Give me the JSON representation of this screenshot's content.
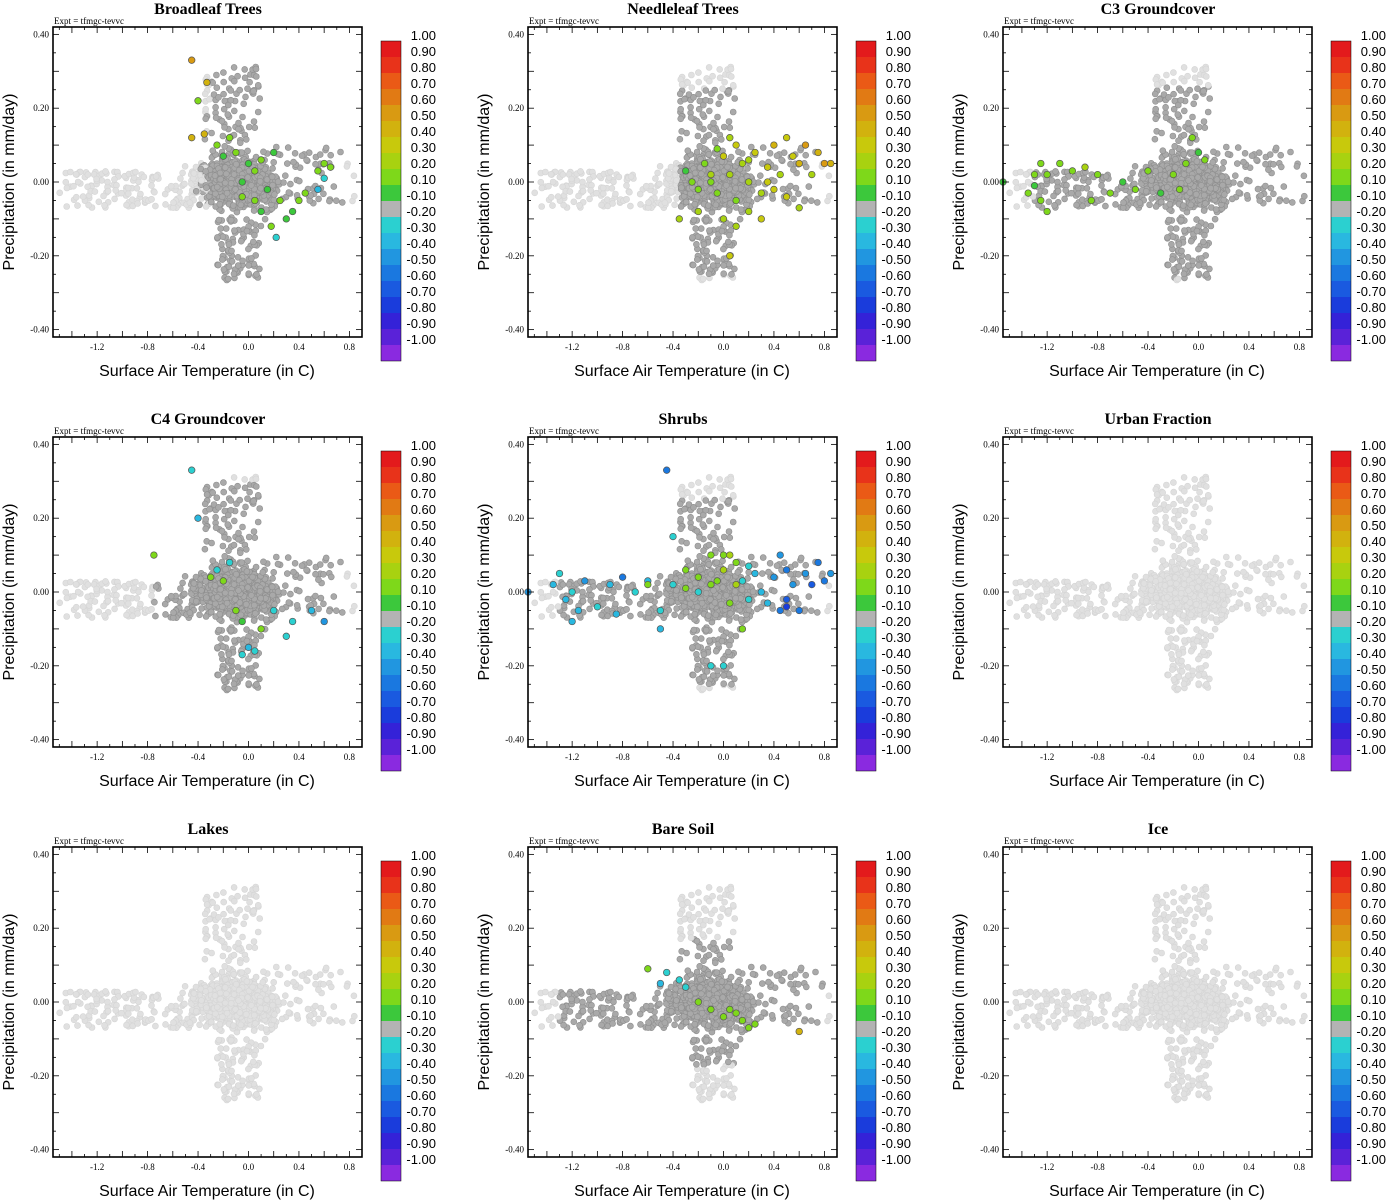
{
  "expt_label": "Expt = tfmgc-tevvc",
  "colorbar": {
    "levels": [
      "1.00",
      "0.90",
      "0.80",
      "0.70",
      "0.60",
      "0.50",
      "0.40",
      "0.30",
      "0.20",
      "0.10",
      "-0.10",
      "-0.20",
      "-0.30",
      "-0.40",
      "-0.50",
      "-0.60",
      "-0.70",
      "-0.80",
      "-0.90",
      "-1.00"
    ],
    "colors": [
      "#e31a1c",
      "#e8331a",
      "#ea5a16",
      "#e17a14",
      "#d99a12",
      "#d2b20e",
      "#c8c90c",
      "#a8d210",
      "#7ed81a",
      "#3cc83c",
      "#b3b3b3",
      "#2bd0d0",
      "#29b8e0",
      "#2196e0",
      "#1a78e0",
      "#1a5ae0",
      "#1a3cdc",
      "#3422d8",
      "#5a22d8",
      "#8a2ae0"
    ]
  },
  "colors": {
    "background_points": "#e0e0e0",
    "neutral_points": "#a9a9a9"
  },
  "chart_data": [
    {
      "type": "scatter",
      "title": "Broadleaf Trees",
      "xlabel": "Surface Air Temperature (in C)",
      "ylabel": "Precipitation (in mm/day)",
      "xlim": [
        -1.55,
        0.9
      ],
      "ylim": [
        -0.42,
        0.42
      ],
      "xticks": [
        "-1.2",
        "-0.8",
        "-0.4",
        "0.0",
        "0.4",
        "0.8"
      ],
      "yticks": [
        "-0.40",
        "-0.20",
        "0.00",
        "0.20",
        "0.40"
      ],
      "highlight": [
        [
          -0.45,
          0.33
        ],
        [
          -0.33,
          0.27
        ],
        [
          -0.4,
          0.22
        ],
        [
          -0.35,
          0.13
        ],
        [
          -0.45,
          0.12
        ],
        [
          -0.25,
          0.1
        ],
        [
          -0.15,
          0.12
        ],
        [
          -0.2,
          0.07
        ],
        [
          -0.1,
          0.08
        ],
        [
          0.0,
          0.05
        ],
        [
          0.1,
          0.06
        ],
        [
          0.2,
          0.08
        ],
        [
          0.05,
          0.03
        ],
        [
          -0.05,
          0.0
        ],
        [
          0.15,
          -0.02
        ],
        [
          0.25,
          -0.05
        ],
        [
          0.3,
          -0.1
        ],
        [
          0.35,
          -0.08
        ],
        [
          0.4,
          -0.05
        ],
        [
          0.45,
          -0.03
        ],
        [
          0.55,
          0.03
        ],
        [
          0.6,
          0.05
        ],
        [
          0.65,
          0.04
        ],
        [
          0.05,
          -0.05
        ],
        [
          0.1,
          -0.08
        ],
        [
          0.18,
          -0.12
        ],
        [
          0.22,
          -0.15
        ],
        [
          -0.05,
          -0.04
        ],
        [
          0.55,
          -0.02
        ],
        [
          0.6,
          0.01
        ]
      ],
      "highlight_values": [
        0.55,
        0.45,
        0.15,
        0.45,
        0.5,
        0.15,
        0.15,
        0.1,
        0.2,
        0.1,
        0.15,
        0.1,
        0.15,
        0.1,
        0.1,
        0.15,
        0.1,
        0.1,
        0.2,
        0.15,
        0.15,
        0.2,
        0.15,
        0.15,
        0.1,
        0.15,
        -0.25,
        0.15,
        -0.3,
        -0.2
      ]
    },
    {
      "type": "scatter",
      "title": "Needleleaf Trees",
      "xlabel": "Surface Air Temperature (in C)",
      "ylabel": "Precipitation (in mm/day)",
      "xlim": [
        -1.55,
        0.9
      ],
      "ylim": [
        -0.42,
        0.42
      ],
      "xticks": [
        "-1.2",
        "-0.8",
        "-0.4",
        "0.0",
        "0.4",
        "0.8"
      ],
      "yticks": [
        "-0.40",
        "-0.20",
        "0.00",
        "0.20",
        "0.40"
      ],
      "highlight": [
        [
          -0.3,
          0.03
        ],
        [
          -0.25,
          0.0
        ],
        [
          -0.2,
          -0.02
        ],
        [
          -0.15,
          0.05
        ],
        [
          -0.1,
          0.02
        ],
        [
          -0.05,
          -0.03
        ],
        [
          0.0,
          0.07
        ],
        [
          0.05,
          0.02
        ],
        [
          0.1,
          -0.05
        ],
        [
          0.15,
          0.05
        ],
        [
          0.2,
          0.0
        ],
        [
          0.25,
          0.08
        ],
        [
          0.3,
          -0.03
        ],
        [
          0.35,
          0.04
        ],
        [
          0.4,
          0.1
        ],
        [
          0.45,
          0.02
        ],
        [
          0.5,
          -0.04
        ],
        [
          0.55,
          0.07
        ],
        [
          0.6,
          0.05
        ],
        [
          0.65,
          0.1
        ],
        [
          0.7,
          0.02
        ],
        [
          0.75,
          0.08
        ],
        [
          0.8,
          0.05
        ],
        [
          0.85,
          0.05
        ],
        [
          0.05,
          0.12
        ],
        [
          0.1,
          0.1
        ],
        [
          -0.05,
          0.09
        ],
        [
          0.0,
          -0.1
        ],
        [
          0.1,
          -0.12
        ],
        [
          0.2,
          -0.08
        ],
        [
          0.3,
          -0.1
        ],
        [
          -0.2,
          -0.08
        ],
        [
          -0.35,
          -0.1
        ],
        [
          0.4,
          -0.02
        ],
        [
          0.5,
          0.12
        ],
        [
          0.6,
          -0.07
        ],
        [
          0.05,
          -0.2
        ],
        [
          -0.1,
          0.0
        ],
        [
          0.2,
          0.06
        ],
        [
          0.35,
          0.0
        ]
      ],
      "highlight_values": [
        0.1,
        0.2,
        0.15,
        0.2,
        0.3,
        0.2,
        0.35,
        0.25,
        0.2,
        0.3,
        0.25,
        0.4,
        0.3,
        0.35,
        0.45,
        0.3,
        0.4,
        0.4,
        0.5,
        0.55,
        0.3,
        0.45,
        0.55,
        0.5,
        0.3,
        0.35,
        0.2,
        0.25,
        0.3,
        0.3,
        0.35,
        0.25,
        0.3,
        0.4,
        0.4,
        0.3,
        0.35,
        0.2,
        0.3,
        0.35
      ]
    },
    {
      "type": "scatter",
      "title": "C3 Groundcover",
      "xlabel": "Surface Air Temperature (in C)",
      "ylabel": "Precipitation (in mm/day)",
      "xlim": [
        -1.55,
        0.9
      ],
      "ylim": [
        -0.42,
        0.42
      ],
      "xticks": [
        "-1.2",
        "-0.8",
        "-0.4",
        "0.0",
        "0.4",
        "0.8"
      ],
      "yticks": [
        "-0.40",
        "-0.20",
        "0.00",
        "0.20",
        "0.40"
      ],
      "highlight": [
        [
          -1.55,
          0.0
        ],
        [
          -1.3,
          0.02
        ],
        [
          -1.25,
          0.05
        ],
        [
          -1.2,
          0.02
        ],
        [
          -1.3,
          -0.01
        ],
        [
          -1.25,
          -0.05
        ],
        [
          -1.2,
          -0.08
        ],
        [
          -1.1,
          0.05
        ],
        [
          -1.0,
          0.03
        ],
        [
          -0.9,
          0.04
        ],
        [
          -0.8,
          0.02
        ],
        [
          -0.85,
          -0.05
        ],
        [
          -0.7,
          -0.03
        ],
        [
          -0.6,
          0.0
        ],
        [
          -0.5,
          -0.02
        ],
        [
          -0.4,
          0.03
        ],
        [
          -0.3,
          -0.03
        ],
        [
          -0.2,
          0.02
        ],
        [
          -0.1,
          0.05
        ],
        [
          0.0,
          0.08
        ],
        [
          -0.05,
          0.12
        ],
        [
          0.05,
          0.06
        ],
        [
          -0.15,
          -0.02
        ],
        [
          -1.35,
          -0.03
        ]
      ],
      "highlight_values": [
        0.1,
        0.15,
        0.2,
        0.15,
        0.1,
        0.15,
        0.15,
        0.2,
        0.15,
        0.3,
        0.15,
        0.15,
        0.2,
        0.1,
        0.15,
        0.15,
        0.1,
        0.15,
        0.2,
        0.1,
        0.15,
        0.2,
        0.15,
        0.15
      ]
    },
    {
      "type": "scatter",
      "title": "C4 Groundcover",
      "xlabel": "Surface Air Temperature (in C)",
      "ylabel": "Precipitation (in mm/day)",
      "xlim": [
        -1.55,
        0.9
      ],
      "ylim": [
        -0.42,
        0.42
      ],
      "xticks": [
        "-1.2",
        "-0.8",
        "-0.4",
        "0.0",
        "0.4",
        "0.8"
      ],
      "yticks": [
        "-0.40",
        "-0.20",
        "0.00",
        "0.20",
        "0.40"
      ],
      "highlight": [
        [
          -0.45,
          0.33
        ],
        [
          -0.4,
          0.2
        ],
        [
          -0.75,
          0.1
        ],
        [
          -0.3,
          0.04
        ],
        [
          -0.2,
          0.03
        ],
        [
          -0.1,
          -0.05
        ],
        [
          -0.05,
          -0.08
        ],
        [
          0.2,
          -0.05
        ],
        [
          0.3,
          -0.12
        ],
        [
          0.1,
          -0.1
        ],
        [
          0.0,
          -0.15
        ],
        [
          -0.05,
          -0.17
        ],
        [
          0.05,
          -0.16
        ],
        [
          0.35,
          -0.08
        ],
        [
          0.5,
          -0.05
        ],
        [
          0.6,
          -0.08
        ],
        [
          -0.15,
          0.08
        ],
        [
          -0.25,
          0.06
        ]
      ],
      "highlight_values": [
        -0.25,
        -0.3,
        0.2,
        0.15,
        0.15,
        0.15,
        0.1,
        -0.2,
        -0.25,
        0.15,
        -0.3,
        -0.2,
        -0.25,
        -0.2,
        -0.3,
        -0.4,
        -0.2,
        -0.2
      ]
    },
    {
      "type": "scatter",
      "title": "Shrubs",
      "xlabel": "Surface Air Temperature (in C)",
      "ylabel": "Precipitation (in mm/day)",
      "xlim": [
        -1.55,
        0.9
      ],
      "ylim": [
        -0.42,
        0.42
      ],
      "xticks": [
        "-1.2",
        "-0.8",
        "-0.4",
        "0.0",
        "0.4",
        "0.8"
      ],
      "yticks": [
        "-0.40",
        "-0.20",
        "0.00",
        "0.20",
        "0.40"
      ],
      "highlight": [
        [
          -0.45,
          0.33
        ],
        [
          -1.55,
          0.0
        ],
        [
          -1.35,
          0.02
        ],
        [
          -1.3,
          0.05
        ],
        [
          -1.25,
          -0.02
        ],
        [
          -1.2,
          0.0
        ],
        [
          -1.15,
          -0.05
        ],
        [
          -1.1,
          0.03
        ],
        [
          -1.0,
          -0.04
        ],
        [
          -0.9,
          0.02
        ],
        [
          -0.85,
          -0.06
        ],
        [
          -0.8,
          0.04
        ],
        [
          -0.7,
          0.0
        ],
        [
          -0.6,
          0.03
        ],
        [
          -0.5,
          -0.05
        ],
        [
          -0.4,
          0.02
        ],
        [
          -0.3,
          0.06
        ],
        [
          -0.2,
          0.04
        ],
        [
          -0.1,
          0.02
        ],
        [
          0.0,
          0.06
        ],
        [
          0.05,
          0.1
        ],
        [
          0.1,
          0.08
        ],
        [
          0.15,
          0.03
        ],
        [
          0.2,
          0.07
        ],
        [
          0.25,
          0.05
        ],
        [
          0.3,
          0.0
        ],
        [
          0.35,
          -0.03
        ],
        [
          0.4,
          0.04
        ],
        [
          0.45,
          0.1
        ],
        [
          0.5,
          0.06
        ],
        [
          0.55,
          0.02
        ],
        [
          0.6,
          -0.05
        ],
        [
          0.65,
          0.05
        ],
        [
          0.7,
          0.02
        ],
        [
          0.75,
          0.08
        ],
        [
          0.8,
          0.03
        ],
        [
          0.85,
          0.05
        ],
        [
          0.45,
          -0.05
        ],
        [
          0.5,
          -0.02
        ],
        [
          -0.3,
          0.01
        ],
        [
          -0.1,
          -0.2
        ],
        [
          0.0,
          -0.2
        ],
        [
          -0.5,
          -0.1
        ],
        [
          0.15,
          -0.1
        ],
        [
          0.1,
          0.02
        ],
        [
          0.05,
          -0.03
        ],
        [
          -0.05,
          0.03
        ],
        [
          -0.1,
          0.1
        ],
        [
          0.0,
          0.1
        ],
        [
          -0.2,
          0.0
        ],
        [
          0.5,
          -0.04
        ],
        [
          -1.2,
          -0.08
        ],
        [
          -0.4,
          0.15
        ],
        [
          -0.6,
          0.02
        ],
        [
          0.2,
          -0.02
        ]
      ],
      "highlight_values": [
        -0.5,
        -0.4,
        -0.3,
        -0.25,
        -0.3,
        -0.25,
        -0.3,
        -0.4,
        -0.25,
        -0.3,
        -0.35,
        -0.5,
        -0.25,
        -0.3,
        -0.25,
        -0.2,
        0.2,
        0.15,
        0.2,
        0.25,
        0.3,
        0.2,
        -0.25,
        -0.2,
        -0.3,
        -0.3,
        -0.3,
        -0.4,
        -0.4,
        -0.5,
        -0.45,
        -0.5,
        -0.4,
        -0.6,
        -0.55,
        -0.5,
        -0.45,
        -0.55,
        -0.6,
        0.15,
        -0.25,
        -0.2,
        -0.3,
        0.15,
        0.25,
        0.2,
        0.15,
        0.15,
        0.2,
        -0.25,
        -0.7,
        -0.3,
        -0.25,
        0.2,
        -0.2
      ]
    },
    {
      "type": "scatter",
      "title": "Urban Fraction",
      "xlabel": "Surface Air Temperature (in C)",
      "ylabel": "Precipitation (in mm/day)",
      "xlim": [
        -1.55,
        0.9
      ],
      "ylim": [
        -0.42,
        0.42
      ],
      "xticks": [
        "-1.2",
        "-0.8",
        "-0.4",
        "0.0",
        "0.4",
        "0.8"
      ],
      "yticks": [
        "-0.40",
        "-0.20",
        "0.00",
        "0.20",
        "0.40"
      ],
      "highlight": [],
      "highlight_values": []
    },
    {
      "type": "scatter",
      "title": "Lakes",
      "xlabel": "Surface Air Temperature (in C)",
      "ylabel": "Precipitation (in mm/day)",
      "xlim": [
        -1.55,
        0.9
      ],
      "ylim": [
        -0.42,
        0.42
      ],
      "xticks": [
        "-1.2",
        "-0.8",
        "-0.4",
        "0.0",
        "0.4",
        "0.8"
      ],
      "yticks": [
        "-0.40",
        "-0.20",
        "0.00",
        "0.20",
        "0.40"
      ],
      "highlight": [],
      "highlight_values": []
    },
    {
      "type": "scatter",
      "title": "Bare Soil",
      "xlabel": "Surface Air Temperature (in C)",
      "ylabel": "Precipitation (in mm/day)",
      "xlim": [
        -1.55,
        0.9
      ],
      "ylim": [
        -0.42,
        0.42
      ],
      "xticks": [
        "-1.2",
        "-0.8",
        "-0.4",
        "0.0",
        "0.4",
        "0.8"
      ],
      "yticks": [
        "-0.40",
        "-0.20",
        "0.00",
        "0.20",
        "0.40"
      ],
      "highlight": [
        [
          -0.6,
          0.09
        ],
        [
          -0.45,
          0.08
        ],
        [
          -0.5,
          0.05
        ],
        [
          -0.3,
          0.04
        ],
        [
          -0.35,
          0.06
        ],
        [
          -0.2,
          0.0
        ],
        [
          -0.1,
          -0.02
        ],
        [
          0.0,
          -0.04
        ],
        [
          0.05,
          -0.02
        ],
        [
          0.1,
          -0.03
        ],
        [
          0.15,
          -0.05
        ],
        [
          0.2,
          -0.07
        ],
        [
          0.6,
          -0.08
        ],
        [
          0.25,
          -0.06
        ]
      ],
      "highlight_values": [
        0.2,
        -0.25,
        -0.3,
        -0.25,
        -0.2,
        0.15,
        0.15,
        0.15,
        0.2,
        0.15,
        0.15,
        0.2,
        0.45,
        0.15
      ]
    },
    {
      "type": "scatter",
      "title": "Ice",
      "xlabel": "Surface Air Temperature (in C)",
      "ylabel": "Precipitation (in mm/day)",
      "xlim": [
        -1.55,
        0.9
      ],
      "ylim": [
        -0.42,
        0.42
      ],
      "xticks": [
        "-1.2",
        "-0.8",
        "-0.4",
        "0.0",
        "0.4",
        "0.8"
      ],
      "yticks": [
        "-0.40",
        "-0.20",
        "0.00",
        "0.20",
        "0.40"
      ],
      "highlight": [],
      "highlight_values": []
    }
  ]
}
